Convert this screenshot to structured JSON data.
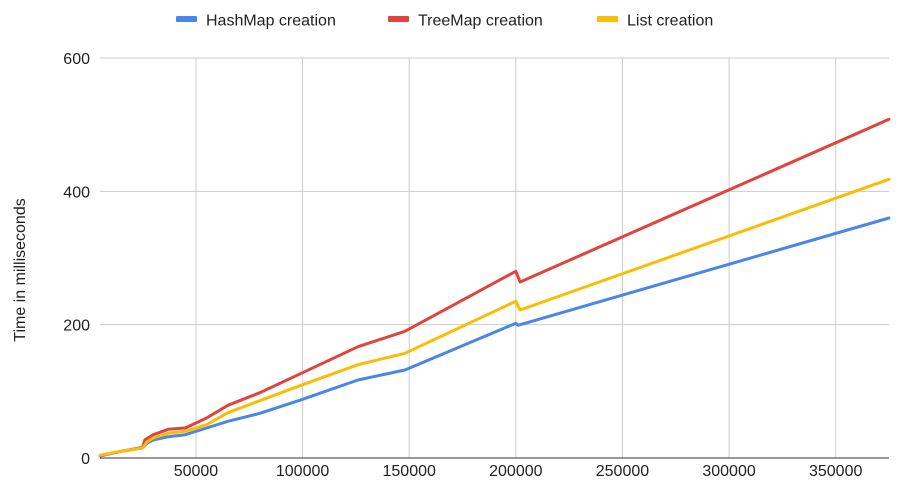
{
  "chart_data": {
    "type": "line",
    "title": "",
    "xlabel": "",
    "ylabel": "Time in milliseconds",
    "xlim": [
      5000,
      375000
    ],
    "ylim": [
      0,
      600
    ],
    "x_ticks": [
      "50000",
      "100000",
      "150000",
      "200000",
      "250000",
      "300000",
      "350000"
    ],
    "y_ticks": [
      "0",
      "200",
      "400",
      "600"
    ],
    "grid": true,
    "legend_position": "top",
    "series": [
      {
        "name": "HashMap creation",
        "color": "#4a86e8",
        "points": [
          [
            5000,
            3
          ],
          [
            15000,
            10
          ],
          [
            25000,
            15
          ],
          [
            27000,
            22
          ],
          [
            30000,
            27
          ],
          [
            37000,
            32
          ],
          [
            45000,
            35
          ],
          [
            55000,
            45
          ],
          [
            65000,
            55
          ],
          [
            80000,
            67
          ],
          [
            100000,
            88
          ],
          [
            126000,
            117
          ],
          [
            148000,
            132
          ],
          [
            200000,
            202
          ],
          [
            201000,
            199
          ],
          [
            375000,
            360
          ]
        ]
      },
      {
        "name": "TreeMap creation",
        "color": "#e0443c",
        "points": [
          [
            5000,
            4
          ],
          [
            15000,
            10
          ],
          [
            25000,
            16
          ],
          [
            26000,
            27
          ],
          [
            30000,
            35
          ],
          [
            37000,
            43
          ],
          [
            45000,
            45
          ],
          [
            55000,
            60
          ],
          [
            65000,
            79
          ],
          [
            80000,
            98
          ],
          [
            100000,
            128
          ],
          [
            126000,
            167
          ],
          [
            148000,
            190
          ],
          [
            200000,
            280
          ],
          [
            202000,
            264
          ],
          [
            375000,
            508
          ]
        ]
      },
      {
        "name": "List creation",
        "color": "#fbbc04",
        "points": [
          [
            5000,
            4
          ],
          [
            15000,
            10
          ],
          [
            25000,
            15
          ],
          [
            27000,
            24
          ],
          [
            30000,
            30
          ],
          [
            37000,
            37
          ],
          [
            45000,
            40
          ],
          [
            55000,
            50
          ],
          [
            65000,
            68
          ],
          [
            80000,
            86
          ],
          [
            100000,
            110
          ],
          [
            126000,
            140
          ],
          [
            148000,
            157
          ],
          [
            200000,
            235
          ],
          [
            202000,
            222
          ],
          [
            375000,
            418
          ]
        ]
      }
    ]
  }
}
